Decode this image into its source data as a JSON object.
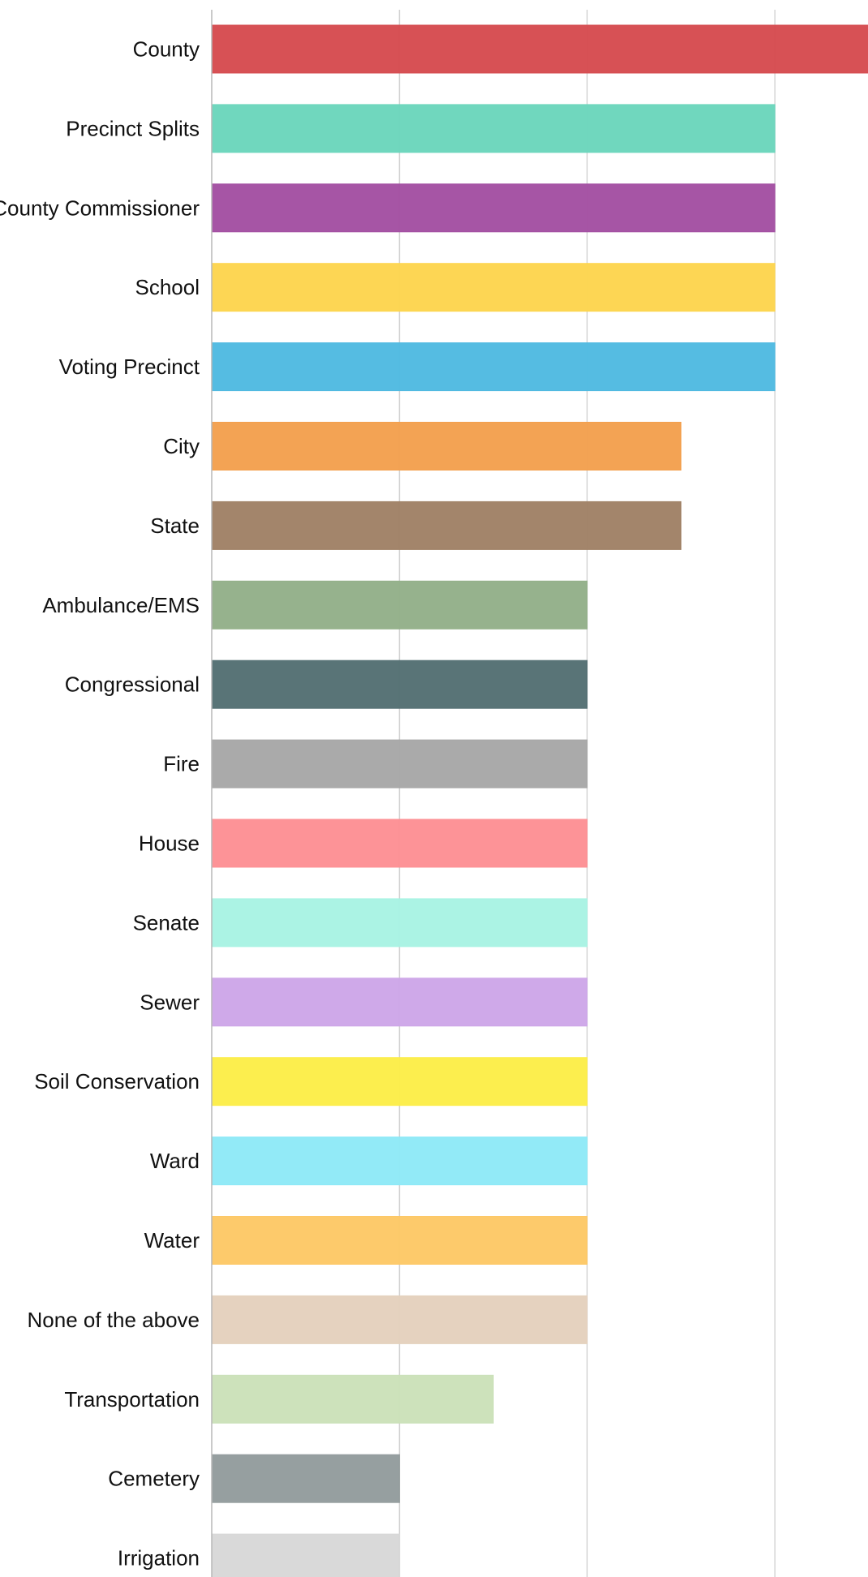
{
  "chart_data": {
    "type": "bar",
    "orientation": "horizontal",
    "title": "",
    "xlabel": "",
    "ylabel": "",
    "categories": [
      "County",
      "Precinct Splits",
      "County Commissioner",
      "School",
      "Voting Precinct",
      "City",
      "State",
      "Ambulance/EMS",
      "Congressional",
      "Fire",
      "House",
      "Senate",
      "Sewer",
      "Soil Conservation",
      "Ward",
      "Water",
      "None of the above",
      "Transportation",
      "Cemetery",
      "Irrigation"
    ],
    "values": [
      7,
      6,
      6,
      6,
      6,
      5,
      5,
      4,
      4,
      4,
      4,
      4,
      4,
      4,
      4,
      4,
      4,
      3,
      2,
      2
    ],
    "colors": [
      "#d64b4f",
      "#6bd6bc",
      "#a34fa2",
      "#fdd54e",
      "#4fbae1",
      "#f3a04e",
      "#a08166",
      "#93b089",
      "#546f73",
      "#a7a7a7",
      "#fd9094",
      "#a8f3e3",
      "#cda6e8",
      "#fced48",
      "#8ee9f7",
      "#fdc866",
      "#e4d1bd",
      "#cbe1b9",
      "#939c9d",
      "#d8d8d8"
    ],
    "xlim": [
      0,
      7
    ],
    "x_gridlines": [
      0,
      2,
      4,
      6
    ],
    "grid": true,
    "legend": "none",
    "tick_labels_x": []
  }
}
